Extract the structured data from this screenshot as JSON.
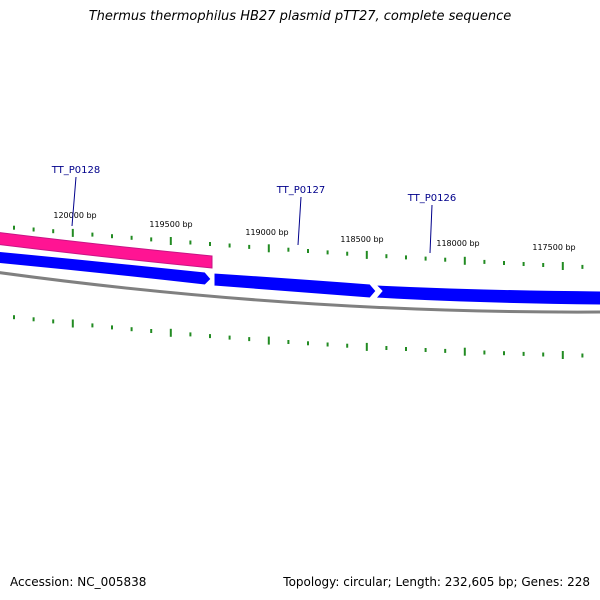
{
  "title": "Thermus thermophilus HB27 plasmid pTT27, complete sequence",
  "footer": {
    "accession": "Accession: NC_005838",
    "summary": "Topology: circular; Length: 232,605 bp; Genes: 228"
  },
  "colors": {
    "forward_gene": "#ff1493",
    "reverse_gene": "#0000ff",
    "backbone": "#808080",
    "ticks": "#228b22",
    "gene_label": "#00008b"
  },
  "ticks": [
    {
      "label": "120000 bp"
    },
    {
      "label": "119500 bp"
    },
    {
      "label": "119000 bp"
    },
    {
      "label": "118500 bp"
    },
    {
      "label": "118000 bp"
    },
    {
      "label": "117500 bp"
    }
  ],
  "genes": [
    {
      "name": "TT_P0128",
      "strand": "forward"
    },
    {
      "name": "TT_P0127",
      "strand": "reverse"
    },
    {
      "name": "TT_P0126",
      "strand": "reverse"
    }
  ]
}
